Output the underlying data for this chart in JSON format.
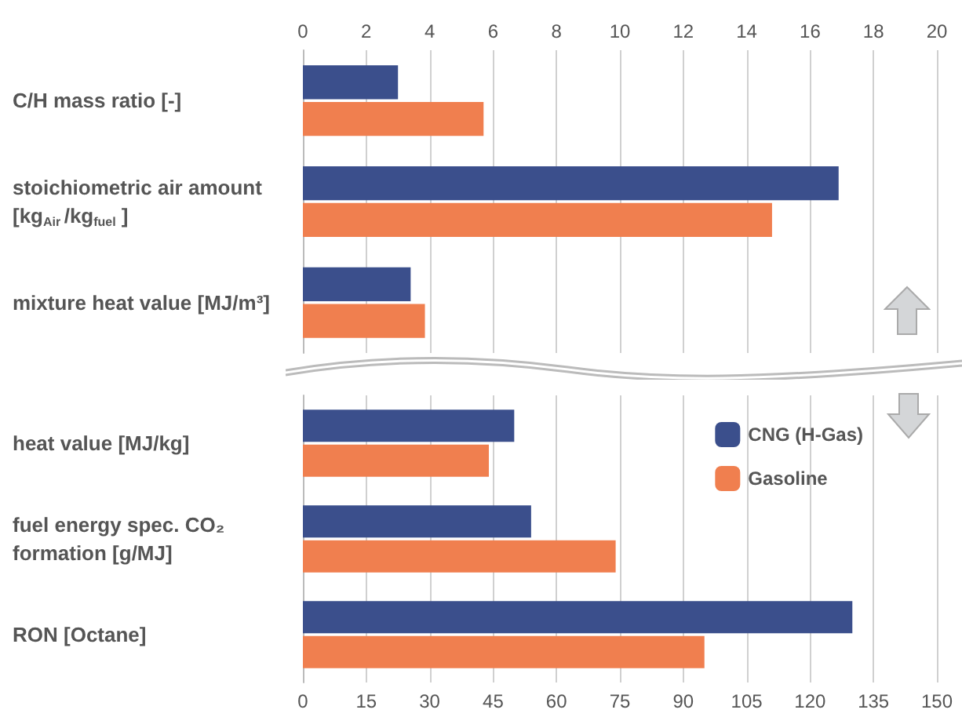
{
  "chart_data": [
    {
      "type": "bar",
      "orientation": "horizontal",
      "categories": [
        "C/H mass ratio [-]",
        "stoichiometric air amount [kg$_{Air}$/kg$_{fuel}$]",
        "mixture heat value [MJ/m³]"
      ],
      "series": [
        {
          "color": "#3b4f8c",
          "values": [
            3.0,
            16.9,
            3.4
          ]
        },
        {
          "color": "#f07f4f",
          "values": [
            5.7,
            14.8,
            3.85
          ]
        }
      ],
      "xlim": [
        0,
        20
      ],
      "xticks": [
        0,
        2,
        4,
        6,
        8,
        10,
        12,
        14,
        16,
        18,
        20
      ],
      "grid": "x",
      "legend": false
    },
    {
      "type": "bar",
      "orientation": "horizontal",
      "categories": [
        "heat value [MJ/kg]",
        "fuel energy spec. CO₂ formation [g/MJ]",
        "RON [Octane]"
      ],
      "series": [
        {
          "name": "CNG (H-Gas)",
          "color": "#3b4f8c",
          "values": [
            50,
            54,
            130
          ]
        },
        {
          "name": "Gasoline",
          "color": "#f07f4f",
          "values": [
            44,
            74,
            95
          ]
        }
      ],
      "xlim": [
        0,
        150
      ],
      "xticks": [
        0,
        15,
        30,
        45,
        60,
        75,
        90,
        105,
        120,
        135,
        150
      ],
      "grid": "x",
      "legend": "top right"
    }
  ]
}
